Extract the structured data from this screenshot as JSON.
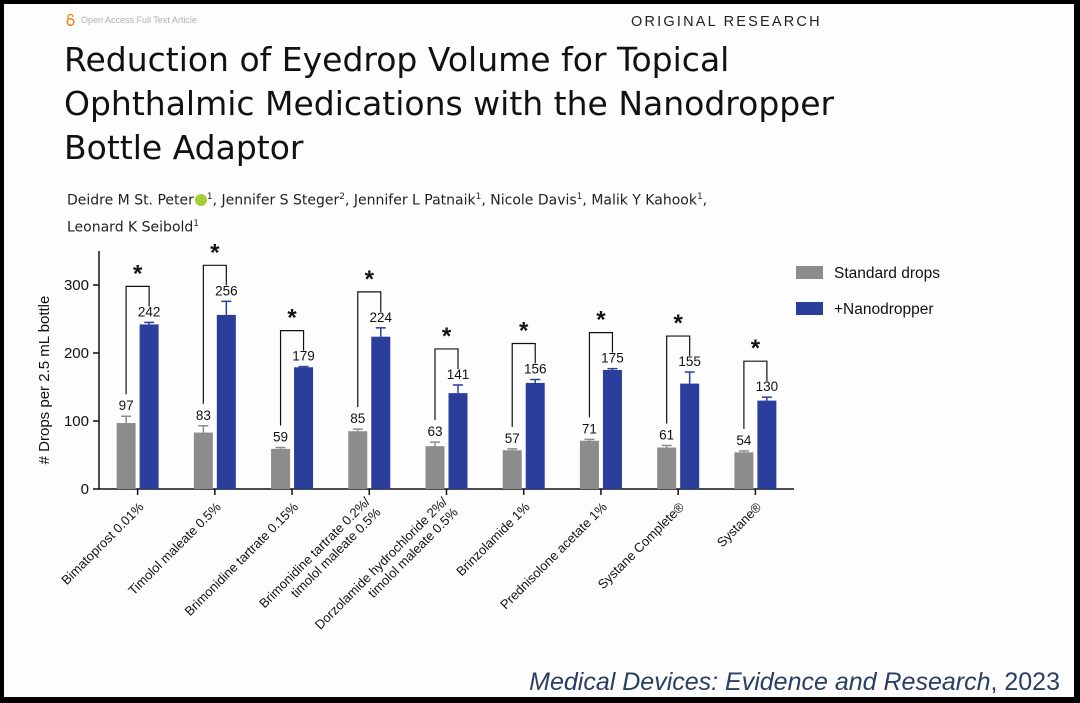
{
  "header": {
    "access_badge": "Open Access Full Text Article",
    "section": "ORIGINAL RESEARCH"
  },
  "paper": {
    "title": "Reduction of Eyedrop Volume for Topical Ophthalmic Medications with the Nanodropper Bottle Adaptor",
    "authors": [
      {
        "name": "Deidre M St. Peter",
        "aff": "1",
        "orcid": true
      },
      {
        "name": "Jennifer S Steger",
        "aff": "2"
      },
      {
        "name": "Jennifer L Patnaik",
        "aff": "1"
      },
      {
        "name": "Nicole Davis",
        "aff": "1"
      },
      {
        "name": "Malik Y Kahook",
        "aff": "1"
      },
      {
        "name": "Leonard K Seibold",
        "aff": "1"
      }
    ]
  },
  "citation": {
    "journal": "Medical Devices: Evidence and Research",
    "year": ", 2023"
  },
  "colors": {
    "standard": "#8c8c8c",
    "nanodropper": "#2b3e9c",
    "axis": "#111111"
  },
  "chart_data": {
    "type": "bar",
    "ylabel": "# Drops per 2.5 mL bottle",
    "ylim": [
      0,
      350
    ],
    "yticks": [
      0,
      100,
      200,
      300
    ],
    "categories": [
      "Bimatoprost 0.01%",
      "Timolol maleate 0.5%",
      "Brimonidine tartrate 0.15%",
      "Brimonidine tartrate 0.2%/\ntimolol maleate 0.5%",
      "Dorzolamide hydrochloride 2%/\ntimolol maleate 0.5%",
      "Brinzolamide 1%",
      "Prednisolone acetate 1%",
      "Systane Complete®",
      "Systane®"
    ],
    "series": [
      {
        "name": "Standard drops",
        "values": [
          97,
          83,
          59,
          85,
          63,
          57,
          71,
          61,
          54
        ],
        "errors": [
          10,
          10,
          2,
          3,
          6,
          2,
          2,
          3,
          2
        ]
      },
      {
        "name": "+Nanodropper",
        "values": [
          242,
          256,
          179,
          224,
          141,
          156,
          175,
          155,
          130
        ],
        "errors": [
          3,
          20,
          1,
          13,
          12,
          5,
          2,
          17,
          5
        ]
      }
    ],
    "significance": [
      "*",
      "*",
      "*",
      "*",
      "*",
      "*",
      "*",
      "*",
      "*"
    ],
    "legend_position": "right"
  }
}
